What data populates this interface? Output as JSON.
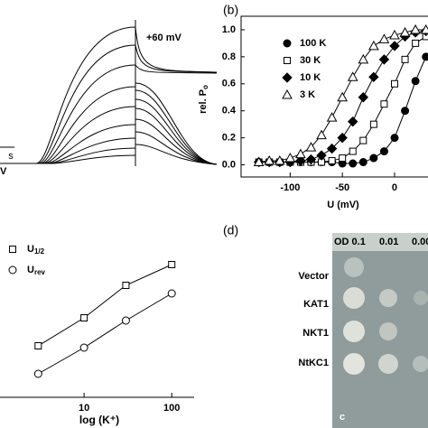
{
  "chart_data": [
    {
      "type": "line",
      "panel_label": "(b)",
      "y_label": "rel. P",
      "y_label_sub": "o",
      "x_label": "U (mV)",
      "x": [
        -130,
        -120,
        -110,
        -100,
        -90,
        -80,
        -70,
        -60,
        -50,
        -40,
        -30,
        -20,
        -10,
        0,
        10,
        20,
        30
      ],
      "series": [
        {
          "name": "100 K",
          "color": "#000000",
          "marker": "circle",
          "filled": true,
          "values": [
            0.02,
            0.02,
            0.02,
            0.02,
            0.02,
            0.02,
            0.02,
            0.02,
            0.01,
            0.01,
            0.02,
            0.05,
            0.1,
            0.2,
            0.4,
            0.62,
            0.8
          ]
        },
        {
          "name": "30 K",
          "color": "#000000",
          "marker": "square",
          "filled": false,
          "values": [
            0.02,
            0.02,
            0.02,
            0.02,
            0.02,
            0.02,
            0.02,
            0.03,
            0.05,
            0.1,
            0.18,
            0.3,
            0.45,
            0.6,
            0.78,
            0.9,
            0.95
          ]
        },
        {
          "name": "10 K",
          "color": "#000000",
          "marker": "diamond",
          "filled": true,
          "values": [
            0.02,
            0.02,
            0.02,
            0.02,
            0.03,
            0.04,
            0.07,
            0.12,
            0.2,
            0.32,
            0.5,
            0.65,
            0.78,
            0.88,
            0.95,
            0.98,
            0.99
          ]
        },
        {
          "name": "3 K",
          "color": "#000000",
          "marker": "triangle",
          "filled": false,
          "values": [
            0.02,
            0.03,
            0.03,
            0.05,
            0.08,
            0.13,
            0.22,
            0.35,
            0.5,
            0.65,
            0.78,
            0.88,
            0.93,
            0.96,
            0.98,
            1.0,
            1.0
          ]
        }
      ],
      "xlim": [
        -147,
        32
      ],
      "xticks": [
        -100,
        -50,
        0
      ],
      "ylim": [
        -0.09,
        1.1
      ],
      "yticks": [
        {
          "value": 0,
          "label": "0.0"
        },
        {
          "value": 0.2,
          "label": "0.2"
        },
        {
          "value": 0.4,
          "label": "0.4"
        },
        {
          "value": 0.6,
          "label": "0.6"
        },
        {
          "value": 0.8,
          "label": "0.8"
        },
        {
          "value": 1,
          "label": "1.0"
        }
      ],
      "frame": true,
      "grid": false
    },
    {
      "type": "scatter",
      "x_label": "log (K⁺)",
      "xscale": "log",
      "x": [
        3,
        10,
        30,
        100
      ],
      "series": [
        {
          "name": "U",
          "name_sub": "1/2",
          "color": "#000000",
          "marker": "square",
          "filled": false,
          "fit": true,
          "values": [
            -103,
            -72,
            -36,
            -13
          ]
        },
        {
          "name": "U",
          "name_sub": "rev",
          "color": "#000000",
          "marker": "circle",
          "filled": false,
          "fit": true,
          "values": [
            -134,
            -105,
            -75,
            -45
          ]
        }
      ],
      "xlim": [
        1.1,
        180
      ],
      "xticks": [
        10,
        100
      ],
      "ylim": [
        -160,
        20
      ],
      "frame": false,
      "grid": false
    }
  ],
  "panel_a": {
    "voltage_label": "+60 mV",
    "scale_label": "s",
    "edge_label": "V"
  },
  "panel_d": {
    "label": "(d)",
    "header": [
      "OD 0.1",
      "0.01",
      "0.00"
    ],
    "rows": [
      "Vector",
      "KAT1",
      "NKT1",
      "NtKC1"
    ],
    "corner": "c"
  }
}
